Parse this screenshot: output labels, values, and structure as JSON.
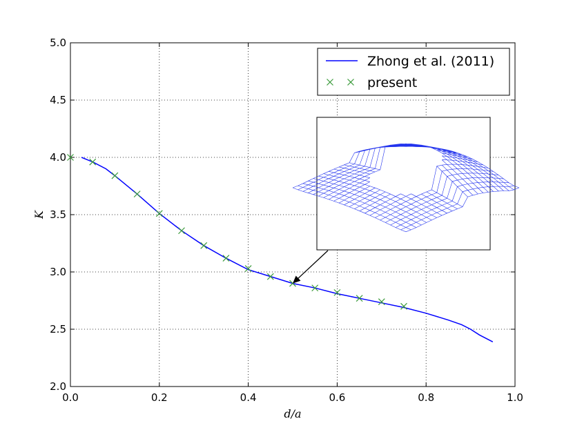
{
  "chart_data": {
    "type": "line",
    "xlabel": "d/a",
    "ylabel": "K",
    "xlim": [
      0.0,
      1.0
    ],
    "ylim": [
      2.0,
      5.0
    ],
    "x_ticks": [
      "0.0",
      "0.2",
      "0.4",
      "0.6",
      "0.8",
      "1.0"
    ],
    "y_ticks": [
      "2.0",
      "2.5",
      "3.0",
      "3.5",
      "4.0",
      "4.5",
      "5.0"
    ],
    "grid": true,
    "legend_position": "top-right",
    "series": [
      {
        "name": "Zhong et al. (2011)",
        "style": "line",
        "color": "#0000ff",
        "x": [
          0.025,
          0.05,
          0.08,
          0.1,
          0.15,
          0.2,
          0.25,
          0.3,
          0.35,
          0.4,
          0.45,
          0.5,
          0.55,
          0.6,
          0.65,
          0.7,
          0.75,
          0.8,
          0.85,
          0.88,
          0.9,
          0.92,
          0.95
        ],
        "y": [
          4.0,
          3.96,
          3.9,
          3.84,
          3.68,
          3.51,
          3.36,
          3.23,
          3.12,
          3.02,
          2.96,
          2.9,
          2.86,
          2.81,
          2.77,
          2.73,
          2.69,
          2.64,
          2.58,
          2.54,
          2.5,
          2.45,
          2.39
        ]
      },
      {
        "name": "present",
        "style": "marker-x",
        "color": "#3a9a3a",
        "x": [
          0.0,
          0.05,
          0.1,
          0.15,
          0.2,
          0.25,
          0.3,
          0.35,
          0.4,
          0.45,
          0.5,
          0.55,
          0.6,
          0.65,
          0.7,
          0.75
        ],
        "y": [
          4.0,
          3.96,
          3.84,
          3.68,
          3.51,
          3.36,
          3.23,
          3.12,
          3.03,
          2.96,
          2.9,
          2.86,
          2.82,
          2.77,
          2.74,
          2.7
        ]
      }
    ],
    "annotation": {
      "type": "inset-image",
      "description_icon": "perforated-plate-mesh-icon",
      "arrow_target": {
        "x": 0.5,
        "y": 2.9
      }
    }
  }
}
